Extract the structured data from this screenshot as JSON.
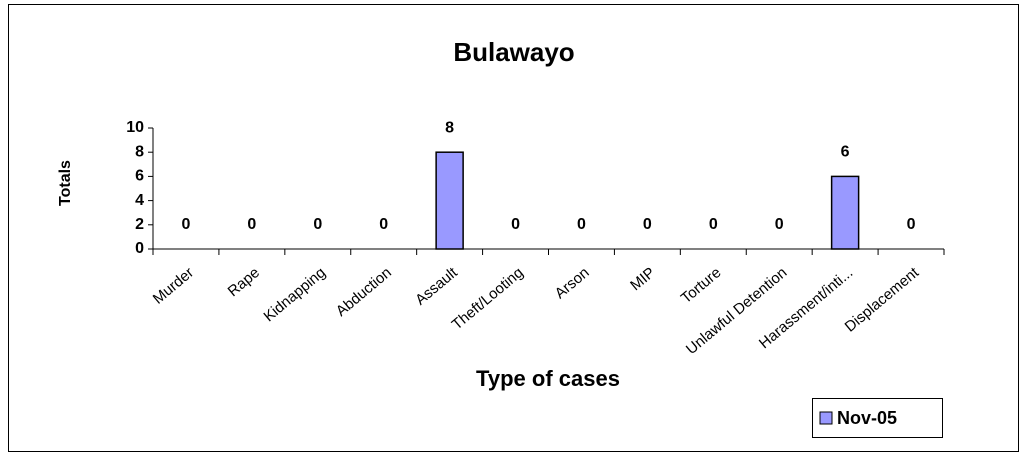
{
  "chart_data": {
    "type": "bar",
    "title": "Bulawayo",
    "x_label": "Type of cases",
    "y_label": "Totals",
    "categories": [
      "Murder",
      "Rape",
      "Kidnapping",
      "Abduction",
      "Assault",
      "Theft/Looting",
      "Arson",
      "MIP",
      "Torture",
      "Unlawful Detention",
      "Harassment/inti...",
      "Displacement"
    ],
    "series": [
      {
        "name": "Nov-05",
        "color": "#9999ff",
        "values": [
          0,
          0,
          0,
          0,
          8,
          0,
          0,
          0,
          0,
          0,
          6,
          0
        ]
      }
    ],
    "ylim": [
      0,
      10
    ],
    "yticks": [
      0,
      2,
      4,
      6,
      8,
      10
    ],
    "grid": false,
    "legend": "bottom-right"
  }
}
